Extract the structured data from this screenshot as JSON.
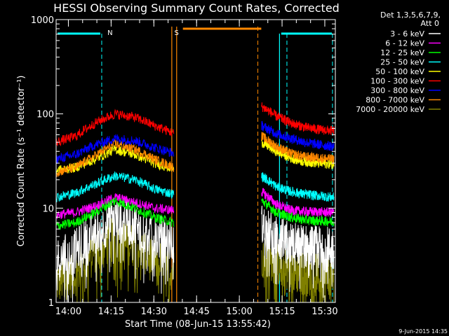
{
  "chart_data": {
    "type": "line",
    "title": "HESSI Observing Summary Count Rates, Corrected",
    "xlabel": "Start Time (08-Jun-15 13:55:42)",
    "ylabel": "Corrected Count Rate (s⁻¹ detector⁻¹)",
    "yscale": "log",
    "ylim": [
      1,
      1000
    ],
    "xlim_minutes": [
      0,
      98
    ],
    "x_ticks": [
      {
        "label": "14:00",
        "t": 4.3
      },
      {
        "label": "14:15",
        "t": 19.3
      },
      {
        "label": "14:30",
        "t": 34.3
      },
      {
        "label": "14:45",
        "t": 49.3
      },
      {
        "label": "15:00",
        "t": 64.3
      },
      {
        "label": "15:15",
        "t": 79.3
      },
      {
        "label": "15:30",
        "t": 94.3
      }
    ],
    "y_ticks": [
      {
        "label": "1",
        "v": 1
      },
      {
        "label": "10",
        "v": 10
      },
      {
        "label": "100",
        "v": 100
      },
      {
        "label": "1000",
        "v": 1000
      }
    ],
    "legend_header": [
      "Det 1,3,5,6,7,9,",
      "Att 0"
    ],
    "legend_placement": "right",
    "series": [
      {
        "name": "3 - 6 keV",
        "color": "#ffffff",
        "values1": [
          2.8,
          3.5,
          5.5,
          7.5,
          6.5,
          5.0,
          4.5
        ],
        "values2": [
          6.5,
          4.8,
          4.2,
          3.9,
          3.8,
          3.7
        ]
      },
      {
        "name": "6 - 12 keV",
        "color": "#ff00ff",
        "values1": [
          8.5,
          9.0,
          10.5,
          13.0,
          11.5,
          10.0,
          9.5
        ],
        "values2": [
          15.0,
          11.0,
          9.5,
          9.2,
          9.1,
          9.0
        ]
      },
      {
        "name": "12 - 25 keV",
        "color": "#00ff00",
        "values1": [
          6.5,
          7.0,
          9.0,
          12.0,
          10.0,
          8.0,
          7.0
        ],
        "values2": [
          12.0,
          9.0,
          8.0,
          7.5,
          7.3,
          7.2
        ]
      },
      {
        "name": "25 - 50 keV",
        "color": "#00ffff",
        "values1": [
          13.0,
          14.5,
          18.0,
          22.0,
          20.0,
          16.0,
          14.0
        ],
        "values2": [
          22.0,
          17.0,
          15.0,
          14.0,
          13.5,
          13.0
        ]
      },
      {
        "name": "50 - 100 keV",
        "color": "#ffff00",
        "values1": [
          25.0,
          27.0,
          33.0,
          42.0,
          37.0,
          30.0,
          26.0
        ],
        "values2": [
          50.0,
          40.0,
          34.0,
          31.0,
          30.0,
          29.0
        ]
      },
      {
        "name": "100 - 300 keV",
        "color": "#ff0000",
        "values1": [
          50.0,
          58.0,
          80.0,
          100.0,
          92.0,
          75.0,
          62.0
        ],
        "values2": [
          120.0,
          95.0,
          80.0,
          72.0,
          68.0,
          66.0
        ]
      },
      {
        "name": "300 - 800 keV",
        "color": "#0000ff",
        "values1": [
          33.0,
          37.0,
          47.0,
          55.0,
          52.0,
          44.0,
          38.0
        ],
        "values2": [
          75.0,
          62.0,
          55.0,
          50.0,
          47.0,
          45.0
        ]
      },
      {
        "name": "800 - 7000 keV",
        "color": "#ff8800",
        "values1": [
          24.0,
          27.0,
          36.0,
          48.0,
          42.0,
          33.0,
          27.0
        ],
        "values2": [
          58.0,
          45.0,
          38.0,
          35.0,
          34.0,
          33.0
        ]
      },
      {
        "name": "7000 - 20000 keV",
        "color": "#808000",
        "values1": [
          1.6,
          2.0,
          3.3,
          4.8,
          4.0,
          2.8,
          2.2
        ],
        "values2": [
          3.2,
          2.6,
          2.2,
          2.0,
          1.9,
          1.8
        ]
      }
    ],
    "annotations": [
      {
        "text": "N",
        "color": "#00ffff",
        "t": 18.0
      },
      {
        "text": "S",
        "color": "#ff8800",
        "t": 41.5
      }
    ],
    "footer_text": "9-Jun-2015 14:35"
  }
}
